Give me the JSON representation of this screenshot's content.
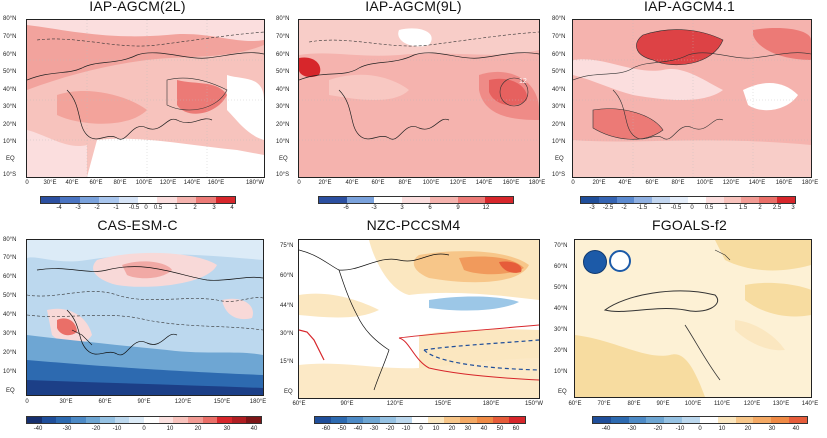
{
  "panels": [
    {
      "title": "IAP-AGCM(2L)",
      "ylabels": [
        "80°N",
        "70°N",
        "60°N",
        "50°N",
        "40°N",
        "30°N",
        "20°N",
        "10°N",
        "EQ",
        "10°S"
      ],
      "xlabels": [
        "0",
        "30°E",
        "40°E",
        "60°E",
        "80°E",
        "100°E",
        "120°E",
        "140°E",
        "160°E",
        "180°W"
      ],
      "cbar_labels": [
        "-4",
        "-3",
        "-2",
        "-1",
        "-0.5",
        "0",
        "0.5",
        "1",
        "2",
        "3",
        "4"
      ],
      "contour_labels": [
        "1",
        "1",
        "1",
        "2"
      ]
    },
    {
      "title": "IAP-AGCM(9L)",
      "ylabels": [
        "80°N",
        "70°N",
        "60°N",
        "50°N",
        "40°N",
        "30°N",
        "20°N",
        "10°N",
        "EQ",
        "10°S"
      ],
      "xlabels": [
        "0",
        "20°E",
        "40°E",
        "60°E",
        "80°E",
        "100°E",
        "120°E",
        "140°E",
        "160°E",
        "180°E"
      ],
      "cbar_labels": [
        "-6",
        "-3",
        "3",
        "6",
        "9",
        "12"
      ],
      "contour_labels": [
        "12",
        "6",
        "6",
        "6"
      ]
    },
    {
      "title": "IAP-AGCM4.1",
      "ylabels": [
        "80°N",
        "70°N",
        "60°N",
        "50°N",
        "40°N",
        "30°N",
        "20°N",
        "10°N",
        "EQ",
        "10°S"
      ],
      "xlabels": [
        "0",
        "20°E",
        "40°E",
        "60°E",
        "80°E",
        "100°E",
        "120°E",
        "140°E",
        "160°E",
        "180°E"
      ],
      "cbar_labels": [
        "-3",
        "-2.5",
        "-2",
        "-1.5",
        "-1",
        "-0.5",
        "0",
        "0.5",
        "1",
        "1.5",
        "2",
        "2.5",
        "3"
      ],
      "contour_labels": [
        "1",
        "1.5",
        "2",
        "1"
      ]
    },
    {
      "title": "CAS-ESM-C",
      "ylabels": [
        "80°N",
        "70°N",
        "60°N",
        "50°N",
        "40°N",
        "30°N",
        "20°N",
        "10°N",
        "EQ"
      ],
      "xlabels": [
        "0",
        "30°E",
        "60°E",
        "90°E",
        "120°E",
        "150°E",
        "180°E"
      ],
      "cbar_labels": [
        "-40",
        "-30",
        "-20",
        "-10",
        "0",
        "10",
        "20",
        "30",
        "40"
      ],
      "contour_labels": []
    },
    {
      "title": "NZC-PCCSM4",
      "ylabels": [
        "75°N",
        "60°N",
        "44°N",
        "30°N",
        "15°N",
        "EQ"
      ],
      "xlabels": [
        "60°E",
        "90°E",
        "120°E",
        "150°E",
        "180°E",
        "150°W"
      ],
      "cbar_labels": [
        "-60",
        "-50",
        "-40",
        "-30",
        "-20",
        "-10",
        "0",
        "10",
        "20",
        "30",
        "40",
        "50",
        "60"
      ],
      "contour_labels": []
    },
    {
      "title": "FGOALS-f2",
      "ylabels": [
        "70°N",
        "60°N",
        "50°N",
        "40°N",
        "30°N",
        "20°N",
        "10°N",
        "EQ"
      ],
      "xlabels": [
        "60°E",
        "70°E",
        "80°E",
        "90°E",
        "100°E",
        "110°E",
        "120°E",
        "130°E",
        "140°E"
      ],
      "cbar_labels": [
        "-40",
        "-30",
        "-20",
        "-10",
        "0",
        "10",
        "20",
        "30",
        "40"
      ],
      "contour_labels": []
    }
  ],
  "colors": {
    "red_dark": "#d7262b",
    "red_mid": "#ec7a76",
    "red_light": "#f5b3ae",
    "pink_pale": "#fbdede",
    "blue_dark": "#1f4e9a",
    "blue_mid": "#5b9bd5",
    "blue_light": "#bcd8ee",
    "orange_light": "#f7dca0",
    "orange_mid": "#f2b45f",
    "cream": "#fdf1d5"
  },
  "icons": [
    "cas-logo-icon",
    "wave-logo-icon"
  ]
}
